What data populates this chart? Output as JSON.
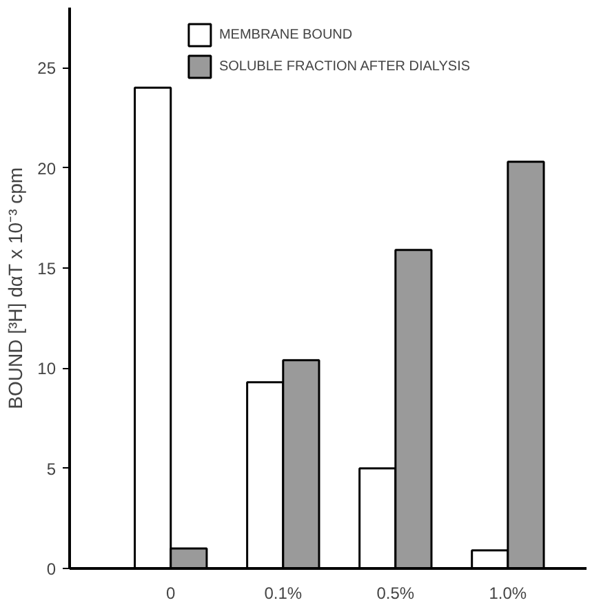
{
  "chart_data": {
    "type": "bar",
    "ylabel": "BOUND [³H] dαT x 10⁻³ cpm",
    "categories": [
      "0",
      "0.1%",
      "0.5%",
      "1.0%"
    ],
    "series": [
      {
        "name": "MEMBRANE BOUND",
        "color": "#ffffff",
        "values": [
          24.0,
          9.3,
          5.0,
          0.9
        ]
      },
      {
        "name": "SOLUBLE FRACTION AFTER DIALYSIS",
        "color": "#9a9a9a",
        "values": [
          1.0,
          10.4,
          15.9,
          20.3
        ]
      }
    ],
    "ylim": [
      0,
      28
    ],
    "yticks": [
      0,
      5,
      10,
      15,
      20,
      25
    ],
    "grid": false,
    "legend": "top"
  }
}
